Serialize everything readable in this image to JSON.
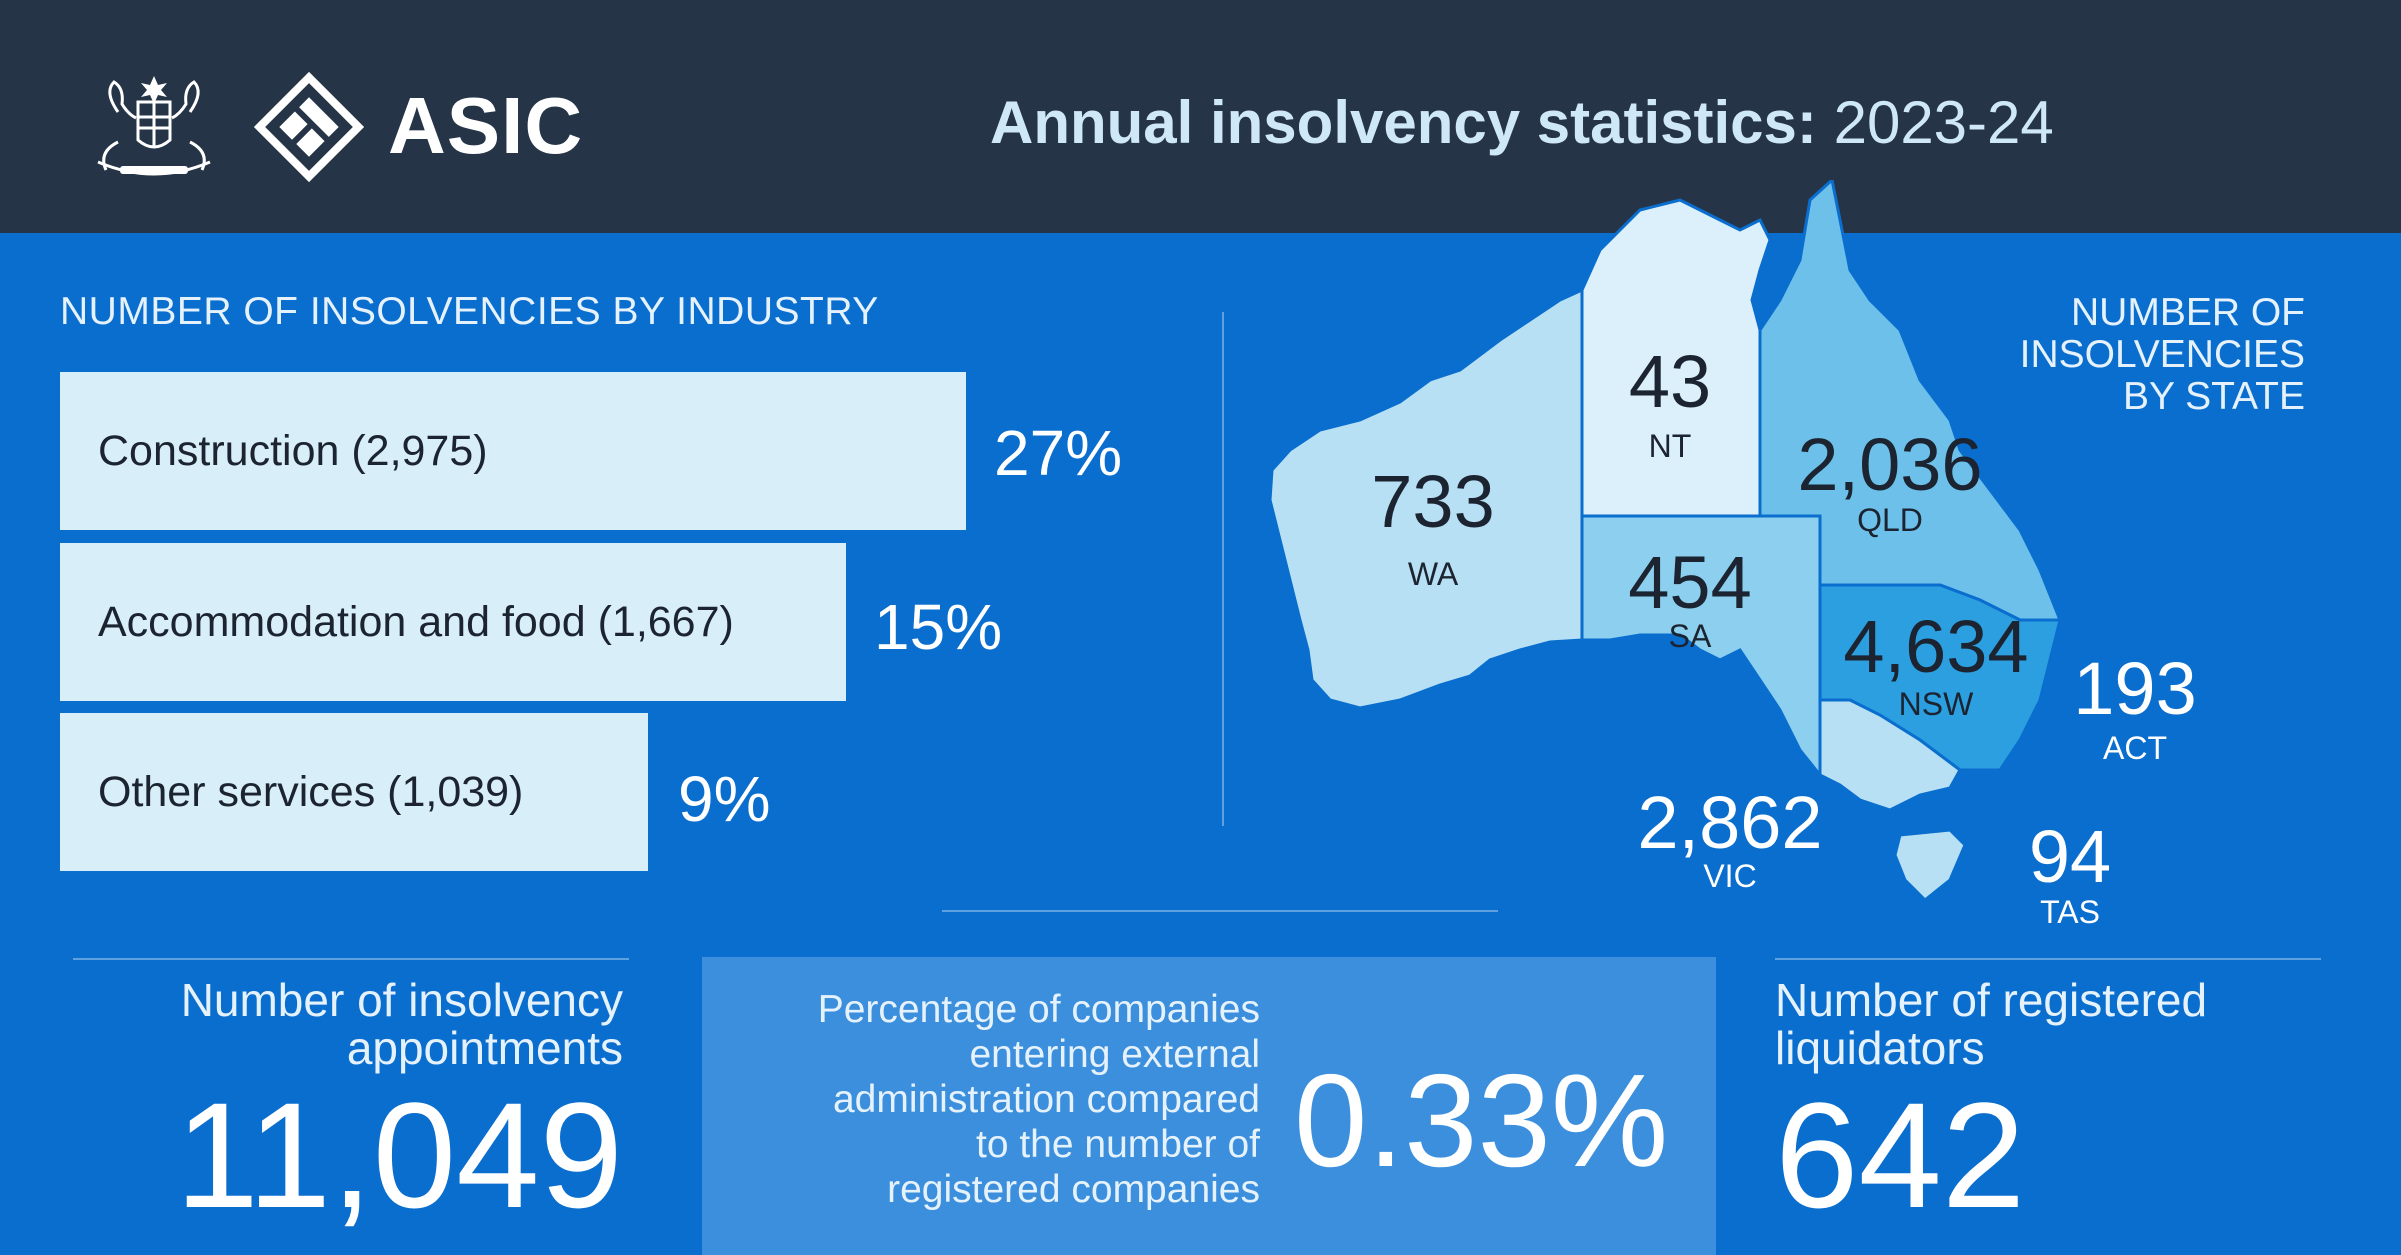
{
  "header": {
    "brand": "ASIC",
    "title_bold": "Annual insolvency statistics:",
    "title_year": "2023-24",
    "icons": [
      "coat-of-arms-icon",
      "asic-logo-icon"
    ]
  },
  "industry": {
    "title": "NUMBER OF INSOLVENCIES BY INDUSTRY",
    "items": [
      {
        "label": "Construction (2,975)",
        "percent_text": "27%",
        "share": 0.27
      },
      {
        "label": "Accommodation and food (1,667)",
        "percent_text": "15%",
        "share": 0.15
      },
      {
        "label": "Other services (1,039)",
        "percent_text": "9%",
        "share": 0.09
      }
    ]
  },
  "states": {
    "title_lines": [
      "NUMBER OF",
      "INSOLVENCIES",
      "BY STATE"
    ],
    "items": {
      "wa": {
        "value": "733",
        "abbr": "WA"
      },
      "nt": {
        "value": "43",
        "abbr": "NT"
      },
      "qld": {
        "value": "2,036",
        "abbr": "QLD"
      },
      "sa": {
        "value": "454",
        "abbr": "SA"
      },
      "nsw": {
        "value": "4,634",
        "abbr": "NSW"
      },
      "act": {
        "value": "193",
        "abbr": "ACT"
      },
      "vic": {
        "value": "2,862",
        "abbr": "VIC"
      },
      "tas": {
        "value": "94",
        "abbr": "TAS"
      }
    },
    "colors": {
      "wa": "#b7e0f4",
      "nt": "#dbf0fa",
      "qld": "#6dc0ea",
      "sa": "#8ccfee",
      "nsw": "#2c9fe0",
      "vic": "#b7e0f4",
      "tas": "#b7e0f4"
    }
  },
  "stats": {
    "appointments": {
      "label_lines": [
        "Number of insolvency",
        "appointments"
      ],
      "value": "11,049"
    },
    "percentage": {
      "label_lines": [
        "Percentage of companies",
        "entering external",
        "administration compared",
        "to the number of",
        "registered companies"
      ],
      "value": "0.33%"
    },
    "liquidators": {
      "label_lines": [
        "Number of registered",
        "liquidators"
      ],
      "value": "642"
    }
  }
}
